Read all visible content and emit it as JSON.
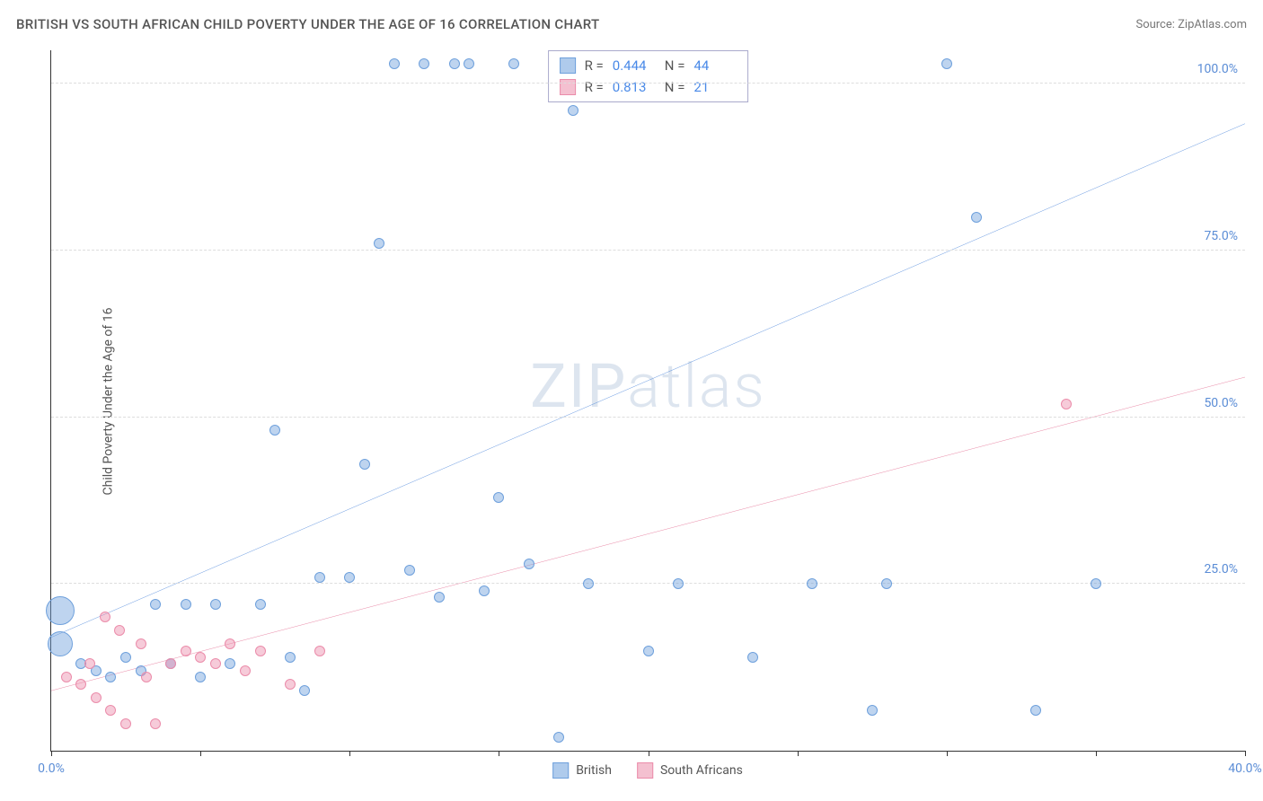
{
  "header": {
    "title": "BRITISH VS SOUTH AFRICAN CHILD POVERTY UNDER THE AGE OF 16 CORRELATION CHART",
    "source": "Source: ZipAtlas.com"
  },
  "watermark": "ZIPatlas",
  "chart": {
    "type": "scatter",
    "y_axis_label": "Child Poverty Under the Age of 16",
    "xlim": [
      0,
      40
    ],
    "ylim": [
      0,
      105
    ],
    "x_ticks": [
      0,
      5,
      10,
      15,
      20,
      25,
      30,
      35,
      40
    ],
    "x_tick_labels": [
      "0.0%",
      "",
      "",
      "",
      "",
      "",
      "",
      "",
      "40.0%"
    ],
    "y_ticks": [
      25,
      50,
      75,
      100
    ],
    "y_tick_labels": [
      "25.0%",
      "50.0%",
      "75.0%",
      "100.0%"
    ],
    "background_color": "#ffffff",
    "grid_color": "#e0e0e0",
    "axis_color": "#333333",
    "label_color": "#5b8dd6",
    "series": [
      {
        "name": "British",
        "color_fill": "rgba(110,160,220,0.45)",
        "color_stroke": "#6ea0dc",
        "trend_color": "#2b6fd4",
        "trend_width": 2,
        "trend": {
          "x1": 0,
          "y1": 17,
          "x2": 40,
          "y2": 94
        },
        "stats": {
          "R": "0.444",
          "N": "44"
        },
        "points": [
          {
            "x": 0.3,
            "y": 21,
            "r": 16
          },
          {
            "x": 0.3,
            "y": 16,
            "r": 14
          },
          {
            "x": 1.0,
            "y": 13,
            "r": 6
          },
          {
            "x": 1.5,
            "y": 12,
            "r": 6
          },
          {
            "x": 2.0,
            "y": 11,
            "r": 6
          },
          {
            "x": 2.5,
            "y": 14,
            "r": 6
          },
          {
            "x": 3.0,
            "y": 12,
            "r": 6
          },
          {
            "x": 3.5,
            "y": 22,
            "r": 6
          },
          {
            "x": 4.0,
            "y": 13,
            "r": 6
          },
          {
            "x": 4.5,
            "y": 22,
            "r": 6
          },
          {
            "x": 5.0,
            "y": 11,
            "r": 6
          },
          {
            "x": 5.5,
            "y": 22,
            "r": 6
          },
          {
            "x": 6.0,
            "y": 13,
            "r": 6
          },
          {
            "x": 7.0,
            "y": 22,
            "r": 6
          },
          {
            "x": 7.5,
            "y": 48,
            "r": 6
          },
          {
            "x": 8.0,
            "y": 14,
            "r": 6
          },
          {
            "x": 8.5,
            "y": 9,
            "r": 6
          },
          {
            "x": 9.0,
            "y": 26,
            "r": 6
          },
          {
            "x": 10.0,
            "y": 26,
            "r": 6
          },
          {
            "x": 10.5,
            "y": 43,
            "r": 6
          },
          {
            "x": 11.0,
            "y": 76,
            "r": 6
          },
          {
            "x": 11.5,
            "y": 103,
            "r": 6
          },
          {
            "x": 12.0,
            "y": 27,
            "r": 6
          },
          {
            "x": 12.5,
            "y": 103,
            "r": 6
          },
          {
            "x": 13.0,
            "y": 23,
            "r": 6
          },
          {
            "x": 13.5,
            "y": 103,
            "r": 6
          },
          {
            "x": 14.0,
            "y": 103,
            "r": 6
          },
          {
            "x": 14.5,
            "y": 24,
            "r": 6
          },
          {
            "x": 15.0,
            "y": 38,
            "r": 6
          },
          {
            "x": 15.5,
            "y": 103,
            "r": 6
          },
          {
            "x": 16.0,
            "y": 28,
            "r": 6
          },
          {
            "x": 17.0,
            "y": 2,
            "r": 6
          },
          {
            "x": 17.5,
            "y": 96,
            "r": 6
          },
          {
            "x": 18.0,
            "y": 25,
            "r": 6
          },
          {
            "x": 20.0,
            "y": 15,
            "r": 6
          },
          {
            "x": 21.0,
            "y": 25,
            "r": 6
          },
          {
            "x": 23.5,
            "y": 14,
            "r": 6
          },
          {
            "x": 25.5,
            "y": 25,
            "r": 6
          },
          {
            "x": 27.5,
            "y": 6,
            "r": 6
          },
          {
            "x": 28.0,
            "y": 25,
            "r": 6
          },
          {
            "x": 30.0,
            "y": 103,
            "r": 6
          },
          {
            "x": 31.0,
            "y": 80,
            "r": 6
          },
          {
            "x": 33.0,
            "y": 6,
            "r": 6
          },
          {
            "x": 35.0,
            "y": 25,
            "r": 6
          }
        ]
      },
      {
        "name": "South Africans",
        "color_fill": "rgba(235,140,170,0.45)",
        "color_stroke": "#eb8caa",
        "trend_color": "#e15b85",
        "trend_width": 2,
        "trend": {
          "x1": 0,
          "y1": 9,
          "x2": 40,
          "y2": 56
        },
        "stats": {
          "R": "0.813",
          "N": "21"
        },
        "points": [
          {
            "x": 0.5,
            "y": 11,
            "r": 6
          },
          {
            "x": 1.0,
            "y": 10,
            "r": 6
          },
          {
            "x": 1.3,
            "y": 13,
            "r": 6
          },
          {
            "x": 1.5,
            "y": 8,
            "r": 6
          },
          {
            "x": 1.8,
            "y": 20,
            "r": 6
          },
          {
            "x": 2.0,
            "y": 6,
            "r": 6
          },
          {
            "x": 2.3,
            "y": 18,
            "r": 6
          },
          {
            "x": 2.5,
            "y": 4,
            "r": 6
          },
          {
            "x": 3.0,
            "y": 16,
            "r": 6
          },
          {
            "x": 3.2,
            "y": 11,
            "r": 6
          },
          {
            "x": 3.5,
            "y": 4,
            "r": 6
          },
          {
            "x": 4.0,
            "y": 13,
            "r": 6
          },
          {
            "x": 4.5,
            "y": 15,
            "r": 6
          },
          {
            "x": 5.0,
            "y": 14,
            "r": 6
          },
          {
            "x": 5.5,
            "y": 13,
            "r": 6
          },
          {
            "x": 6.0,
            "y": 16,
            "r": 6
          },
          {
            "x": 6.5,
            "y": 12,
            "r": 6
          },
          {
            "x": 7.0,
            "y": 15,
            "r": 6
          },
          {
            "x": 8.0,
            "y": 10,
            "r": 6
          },
          {
            "x": 9.0,
            "y": 15,
            "r": 6
          },
          {
            "x": 34.0,
            "y": 52,
            "r": 6
          }
        ]
      }
    ]
  },
  "legend": {
    "items": [
      {
        "label": "British",
        "fill": "rgba(110,160,220,0.55)",
        "stroke": "#6ea0dc"
      },
      {
        "label": "South Africans",
        "fill": "rgba(235,140,170,0.55)",
        "stroke": "#eb8caa"
      }
    ]
  },
  "stats_box": {
    "rows": [
      {
        "fill": "rgba(110,160,220,0.55)",
        "stroke": "#6ea0dc",
        "R": "0.444",
        "N": "44"
      },
      {
        "fill": "rgba(235,140,170,0.55)",
        "stroke": "#eb8caa",
        "R": "0.813",
        "N": "21"
      }
    ]
  }
}
